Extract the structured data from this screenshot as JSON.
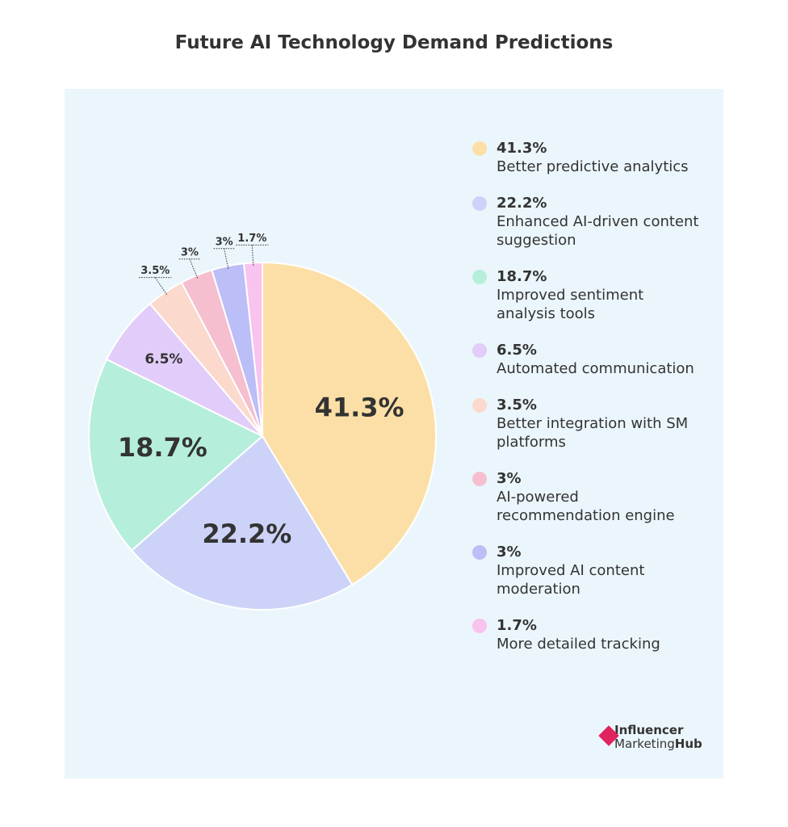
{
  "chart_data": {
    "type": "pie",
    "title": "Future AI Technology Demand Predictions",
    "categories": [
      "Better predictive analytics",
      "Enhanced AI-driven content suggestion",
      "Improved sentiment analysis tools",
      "Automated communication",
      "Better integration with SM platforms",
      "AI-powered recommendation engine",
      "Improved AI content moderation",
      "More detailed tracking"
    ],
    "values": [
      41.3,
      22.2,
      18.7,
      6.5,
      3.5,
      3,
      3,
      1.7
    ],
    "value_labels": [
      "41.3%",
      "22.2%",
      "18.7%",
      "6.5%",
      "3.5%",
      "3%",
      "3%",
      "1.7%"
    ],
    "colors": [
      "#fcdfa6",
      "#cdd3f8",
      "#b6eedc",
      "#e2ccfa",
      "#fbd9cc",
      "#f5bfd0",
      "#bcbef7",
      "#f8c3ee"
    ]
  },
  "logo": {
    "line1": "Influencer",
    "line2a": "Marketing",
    "line2b": "Hub"
  }
}
